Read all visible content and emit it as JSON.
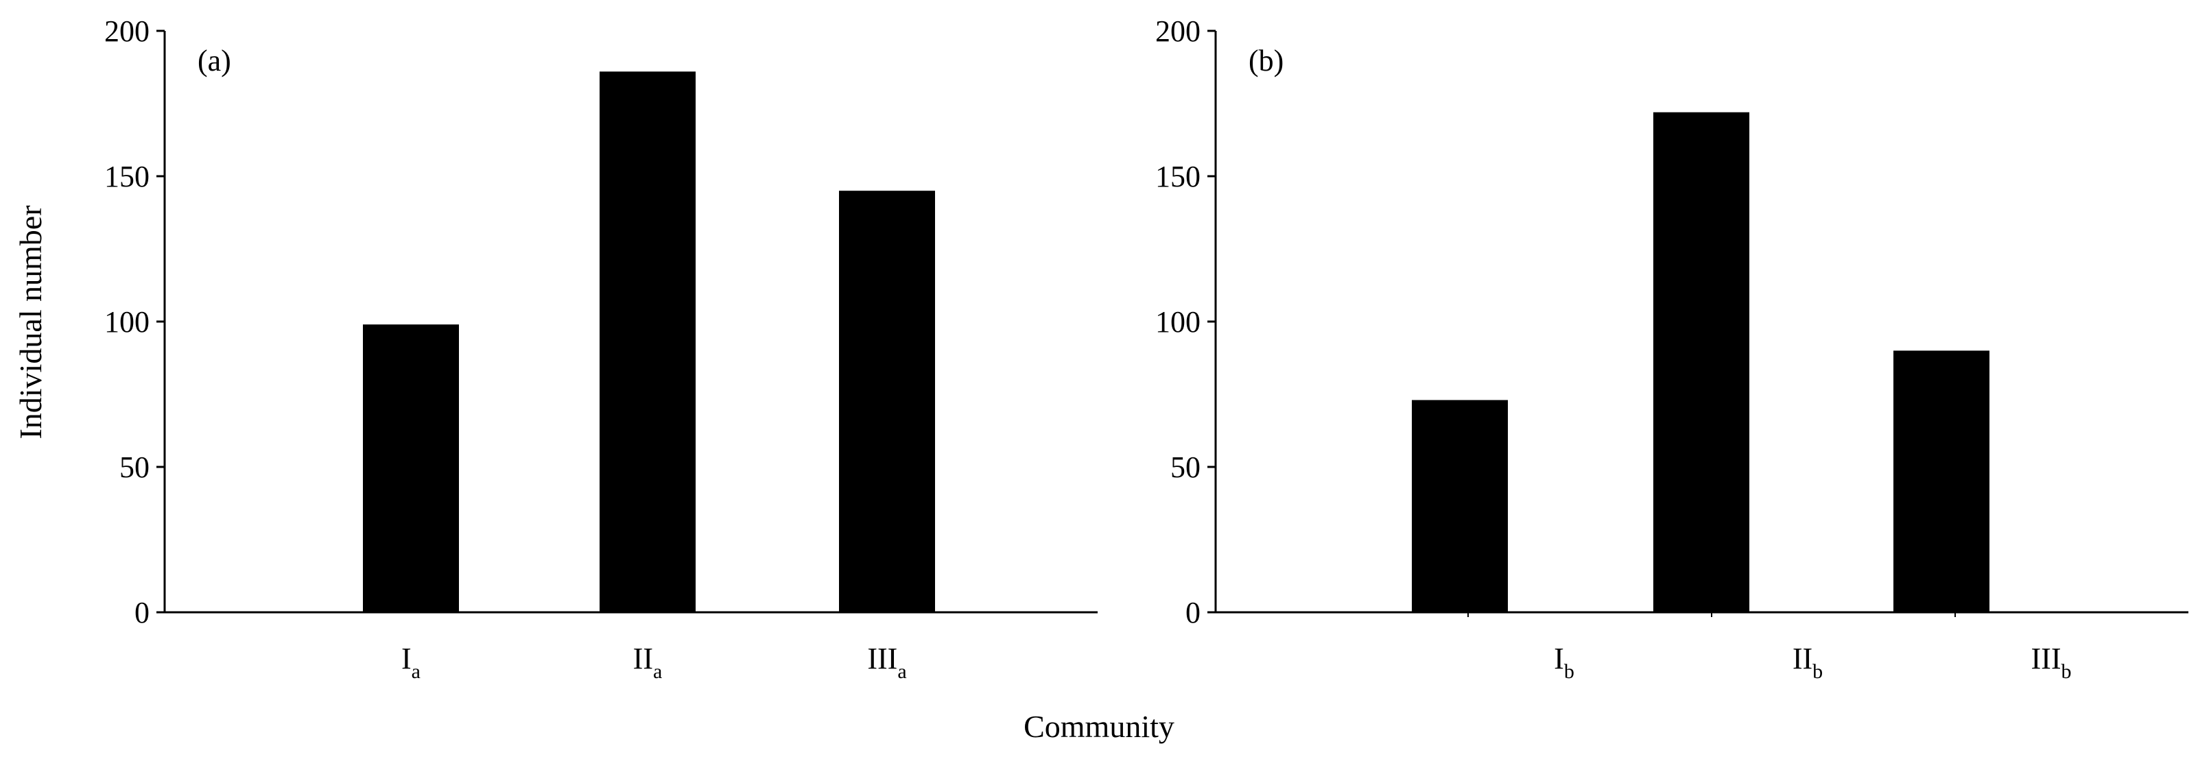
{
  "chart_data": {
    "type": "bar",
    "ylabel": "Individual number",
    "xlabel": "Community",
    "panels": [
      {
        "panel_label": "(a)",
        "categories": [
          {
            "base": "I",
            "sub": "a"
          },
          {
            "base": "II",
            "sub": "a"
          },
          {
            "base": "III",
            "sub": "a"
          }
        ],
        "values": [
          99,
          186,
          145
        ],
        "ylim": [
          0,
          200
        ],
        "yticks": [
          "0",
          "50",
          "100",
          "150",
          "200"
        ],
        "bar_color": "#000000"
      },
      {
        "panel_label": "(b)",
        "categories": [
          {
            "base": "I",
            "sub": "b"
          },
          {
            "base": "II",
            "sub": "b"
          },
          {
            "base": "III",
            "sub": "b"
          }
        ],
        "values": [
          73,
          172,
          90
        ],
        "ylim": [
          0,
          200
        ],
        "yticks": [
          "0",
          "50",
          "100",
          "150",
          "200"
        ],
        "bar_color": "#000000"
      }
    ],
    "grid": false
  }
}
